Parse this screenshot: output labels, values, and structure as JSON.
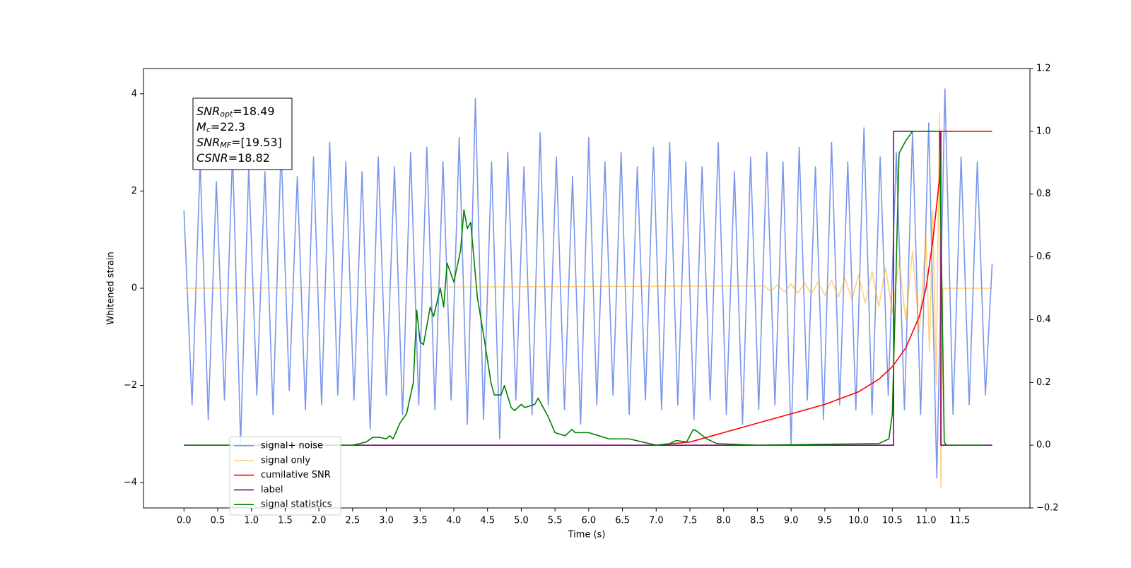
{
  "chart_data": {
    "type": "line",
    "xlabel": "Time (s)",
    "ylabel": "Whitened strain",
    "xlim": [
      -0.6,
      12.54
    ],
    "ylim": [
      -4.52,
      4.52
    ],
    "y2lim": [
      -0.2,
      1.2
    ],
    "xticks": [
      {
        "value": 0,
        "label": "0.0"
      },
      0.5,
      {
        "value": 1,
        "label": "1.0"
      },
      1.5,
      {
        "value": 2,
        "label": "2.0"
      },
      2.5,
      {
        "value": 3,
        "label": "3.0"
      },
      3.5,
      {
        "value": 4,
        "label": "4.0"
      },
      4.5,
      {
        "value": 5,
        "label": "5.0"
      },
      5.5,
      {
        "value": 6,
        "label": "6.0"
      },
      6.5,
      {
        "value": 7,
        "label": "7.0"
      },
      7.5,
      {
        "value": 8,
        "label": "8.0"
      },
      8.5,
      {
        "value": 9,
        "label": "9.0"
      },
      9.5,
      {
        "value": 10,
        "label": "10.0"
      },
      10.5,
      {
        "value": 11,
        "label": "11.0"
      },
      11.5
    ],
    "yticks": [
      {
        "value": -4,
        "label": "−4"
      },
      {
        "value": -2,
        "label": "−2"
      },
      0,
      2,
      4
    ],
    "y2ticks": [
      {
        "value": -0.2,
        "label": "−0.2"
      },
      {
        "value": 0,
        "label": "0.0"
      },
      0.2,
      0.4,
      0.6,
      0.8,
      {
        "value": 1,
        "label": "1.0"
      },
      1.2
    ],
    "legend": "lower left",
    "annotation": [
      {
        "main": "SNR",
        "sub": "opt",
        "rest": "=18.49"
      },
      {
        "main": "M",
        "sub": "c",
        "rest": "=22.3"
      },
      {
        "main": "SNR",
        "sub": "MF",
        "rest": "=[19.53]"
      },
      {
        "main": "CSNR",
        "rest": "=18.82"
      }
    ],
    "series": [
      {
        "name": "signal+ noise",
        "color": "#4169e1",
        "alpha": 0.7,
        "x": [
          0,
          0.12,
          0.24,
          0.36,
          0.48,
          0.6,
          0.72,
          0.84,
          0.96,
          1.08,
          1.2,
          1.32,
          1.44,
          1.56,
          1.68,
          1.8,
          1.92,
          2.04,
          2.16,
          2.28,
          2.4,
          2.52,
          2.64,
          2.76,
          2.88,
          3,
          3.12,
          3.24,
          3.36,
          3.48,
          3.6,
          3.72,
          3.84,
          3.96,
          4.08,
          4.2,
          4.32,
          4.44,
          4.56,
          4.68,
          4.8,
          4.92,
          5.04,
          5.16,
          5.28,
          5.4,
          5.52,
          5.64,
          5.76,
          5.88,
          6,
          6.12,
          6.24,
          6.36,
          6.48,
          6.6,
          6.72,
          6.84,
          6.96,
          7.08,
          7.2,
          7.32,
          7.44,
          7.56,
          7.68,
          7.8,
          7.92,
          8.04,
          8.16,
          8.28,
          8.4,
          8.52,
          8.64,
          8.76,
          8.88,
          9,
          9.12,
          9.24,
          9.36,
          9.48,
          9.6,
          9.72,
          9.84,
          9.96,
          10.08,
          10.2,
          10.32,
          10.44,
          10.56,
          10.68,
          10.8,
          10.92,
          11.04,
          11.16,
          11.28,
          11.4,
          11.52,
          11.64,
          11.76,
          11.88,
          11.98
        ],
        "values": [
          1.6,
          -2.4,
          2.6,
          -2.7,
          2.2,
          -2.3,
          2.8,
          -3.2,
          2.5,
          -2.2,
          2.4,
          -2.6,
          2.9,
          -2.1,
          2.3,
          -2.5,
          2.7,
          -2.4,
          3.0,
          -2.2,
          2.6,
          -2.3,
          2.4,
          -2.9,
          2.7,
          -2.2,
          2.5,
          -2.6,
          2.8,
          -2.4,
          2.9,
          -2.5,
          2.6,
          -2.3,
          3.1,
          -2.8,
          3.9,
          -2.7,
          2.6,
          -3.1,
          2.8,
          -2.3,
          2.5,
          -2.6,
          3.2,
          -2.4,
          2.7,
          -2.5,
          2.3,
          -2.8,
          3.1,
          -2.4,
          2.6,
          -2.2,
          2.8,
          -2.6,
          2.5,
          -2.3,
          2.9,
          -2.5,
          3.0,
          -2.4,
          2.6,
          -2.7,
          2.5,
          -2.3,
          3.0,
          -2.6,
          2.4,
          -2.8,
          2.7,
          -2.5,
          2.8,
          -2.4,
          2.6,
          -3.2,
          2.9,
          -2.3,
          2.5,
          -2.7,
          3.0,
          -2.4,
          2.6,
          -2.5,
          3.3,
          -2.6,
          2.7,
          -2.2,
          2.8,
          -2.5,
          3.2,
          -2.6,
          3.4,
          -3.9,
          4.1,
          -2.6,
          2.7,
          -2.4,
          2.6,
          -2.2,
          0.5
        ]
      },
      {
        "name": "signal only",
        "color": "#ffa500",
        "alpha": 0.5,
        "x": [
          0,
          8.6,
          8.7,
          8.8,
          8.9,
          9.0,
          9.1,
          9.2,
          9.3,
          9.4,
          9.5,
          9.6,
          9.7,
          9.8,
          9.9,
          10.0,
          10.1,
          10.2,
          10.3,
          10.4,
          10.5,
          10.6,
          10.7,
          10.8,
          10.9,
          11.0,
          11.05,
          11.1,
          11.15,
          11.2,
          11.22,
          11.25,
          11.98
        ],
        "values": [
          0,
          0.05,
          -0.06,
          0.07,
          -0.08,
          0.09,
          -0.1,
          0.11,
          -0.12,
          0.13,
          -0.15,
          0.17,
          -0.19,
          0.21,
          -0.24,
          0.27,
          -0.3,
          0.34,
          -0.38,
          0.43,
          -0.5,
          0.57,
          -0.66,
          0.77,
          -0.9,
          1.1,
          -1.3,
          1.6,
          -2.0,
          3.6,
          -4.1,
          0,
          0
        ]
      },
      {
        "name": "cumilative SNR",
        "color": "#ff0000",
        "alpha": 1,
        "axis": "y2",
        "x": [
          7.0,
          7.5,
          8.0,
          8.5,
          9.0,
          9.5,
          10.0,
          10.3,
          10.5,
          10.7,
          10.9,
          11.0,
          11.1,
          11.2,
          11.22,
          11.98
        ],
        "values": [
          0,
          0.01,
          0.04,
          0.07,
          0.1,
          0.13,
          0.17,
          0.21,
          0.25,
          0.31,
          0.41,
          0.5,
          0.65,
          0.85,
          1.0,
          1.0
        ]
      },
      {
        "name": "label",
        "color": "#800080",
        "alpha": 1,
        "axis": "y2",
        "x": [
          0,
          10.52,
          10.52,
          11.22,
          11.22,
          11.98
        ],
        "values": [
          0,
          0,
          1,
          1,
          0,
          0
        ]
      },
      {
        "name": "signal statistics",
        "color": "#008000",
        "alpha": 1,
        "axis": "y2",
        "x": [
          0,
          2.5,
          2.7,
          2.8,
          2.9,
          3.0,
          3.05,
          3.1,
          3.2,
          3.3,
          3.4,
          3.45,
          3.5,
          3.55,
          3.65,
          3.7,
          3.8,
          3.85,
          3.9,
          4.0,
          4.1,
          4.15,
          4.2,
          4.25,
          4.35,
          4.45,
          4.55,
          4.6,
          4.7,
          4.75,
          4.85,
          4.9,
          5.0,
          5.05,
          5.2,
          5.25,
          5.4,
          5.5,
          5.65,
          5.75,
          5.8,
          6.0,
          6.15,
          6.3,
          6.5,
          6.6,
          6.8,
          7.0,
          7.2,
          7.3,
          7.45,
          7.55,
          7.6,
          7.75,
          7.9,
          8.5,
          10.3,
          10.45,
          10.5,
          10.55,
          10.6,
          10.7,
          10.8,
          11.2,
          11.27,
          11.3,
          11.92
        ],
        "values": [
          0,
          0,
          0.01,
          0.025,
          0.025,
          0.02,
          0.03,
          0.02,
          0.07,
          0.1,
          0.2,
          0.43,
          0.33,
          0.32,
          0.44,
          0.41,
          0.5,
          0.44,
          0.58,
          0.52,
          0.62,
          0.75,
          0.69,
          0.71,
          0.47,
          0.34,
          0.2,
          0.16,
          0.16,
          0.19,
          0.12,
          0.11,
          0.13,
          0.12,
          0.13,
          0.15,
          0.09,
          0.04,
          0.03,
          0.05,
          0.04,
          0.04,
          0.03,
          0.02,
          0.02,
          0.02,
          0.01,
          0,
          0.005,
          0.015,
          0.01,
          0.05,
          0.045,
          0.02,
          0.005,
          0,
          0.005,
          0.02,
          0.1,
          0.5,
          0.93,
          0.97,
          1.0,
          1.0,
          0.01,
          0,
          0
        ]
      }
    ]
  }
}
